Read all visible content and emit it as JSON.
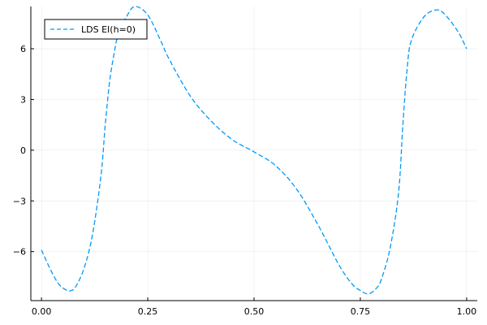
{
  "chart_data": {
    "type": "line",
    "title": "",
    "xlabel": "",
    "ylabel": "",
    "xlim": [
      -0.025,
      1.025
    ],
    "ylim": [
      -8.9,
      8.5
    ],
    "xticks": [
      0.0,
      0.25,
      0.5,
      0.75,
      1.0
    ],
    "xtick_labels": [
      "0.00",
      "0.25",
      "0.50",
      "0.75",
      "1.00"
    ],
    "yticks": [
      -6,
      -3,
      0,
      3,
      6
    ],
    "ytick_labels": [
      "−6",
      "−3",
      "0",
      "3",
      "6"
    ],
    "grid": true,
    "legend": {
      "placement": "top-left"
    },
    "series": [
      {
        "name": "LDS EI(h=0)",
        "color": "#009AFA",
        "dash": "dashed",
        "x": [
          0.0,
          0.02,
          0.04,
          0.06,
          0.07,
          0.08,
          0.1,
          0.12,
          0.14,
          0.15,
          0.16,
          0.17,
          0.18,
          0.2,
          0.22,
          0.25,
          0.28,
          0.3,
          0.35,
          0.4,
          0.45,
          0.5,
          0.55,
          0.6,
          0.65,
          0.7,
          0.73,
          0.75,
          0.77,
          0.79,
          0.8,
          0.82,
          0.84,
          0.85,
          0.86,
          0.87,
          0.9,
          0.93,
          0.95,
          0.98,
          1.0
        ],
        "y": [
          -5.9,
          -7.0,
          -7.9,
          -8.3,
          -8.3,
          -8.1,
          -7.0,
          -5.0,
          -1.5,
          1.5,
          4.0,
          5.6,
          6.8,
          7.9,
          8.5,
          8.0,
          6.5,
          5.4,
          3.2,
          1.7,
          0.6,
          -0.1,
          -0.9,
          -2.3,
          -4.4,
          -6.8,
          -7.9,
          -8.3,
          -8.5,
          -8.1,
          -7.6,
          -5.8,
          -2.5,
          1.5,
          4.8,
          6.5,
          7.9,
          8.3,
          8.0,
          7.0,
          6.0
        ]
      }
    ]
  }
}
